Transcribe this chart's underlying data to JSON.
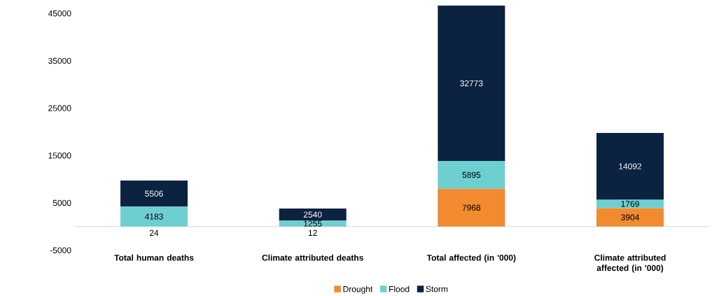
{
  "chart_data": {
    "type": "bar",
    "stacked": true,
    "categories": [
      "Total human deaths",
      "Climate attributed deaths",
      "Total affected (in '000)",
      "Climate attributed affected (in '000)"
    ],
    "series": [
      {
        "name": "Drought",
        "color": "#f28a30",
        "values": [
          24,
          12,
          7968,
          3904
        ]
      },
      {
        "name": "Flood",
        "color": "#6ecfd3",
        "values": [
          4183,
          1255,
          5895,
          1769
        ]
      },
      {
        "name": "Storm",
        "color": "#0b2240",
        "values": [
          5506,
          2540,
          32773,
          14092
        ]
      }
    ],
    "data_labels": true,
    "ylim": [
      -5000,
      47000
    ],
    "yticks": [
      -5000,
      5000,
      15000,
      25000,
      35000,
      45000
    ],
    "grid": false,
    "legend": "bottom"
  }
}
